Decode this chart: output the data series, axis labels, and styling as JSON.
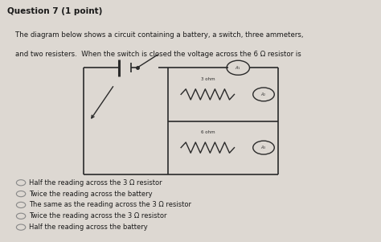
{
  "title": "Question 7 (1 point)",
  "question_text_line1": "The diagram below shows a circuit containing a battery, a switch, three ammeters,",
  "question_text_line2": "and two resisters.  When the switch is closed the voltage across the 6 Ω resistor is",
  "choices": [
    "Half the reading across the 3 Ω resistor",
    "Twice the reading across the battery",
    "The same as the reading across the 3 Ω resistor",
    "Twice the reading across the 3 Ω resistor",
    "Half the reading across the battery"
  ],
  "bg_color": "#ddd8d2",
  "text_color": "#1a1a1a",
  "circuit_color": "#2a2a2a",
  "radio_color": "#888888",
  "resistor_label_3": "3 ohm",
  "resistor_label_6": "6 ohm"
}
